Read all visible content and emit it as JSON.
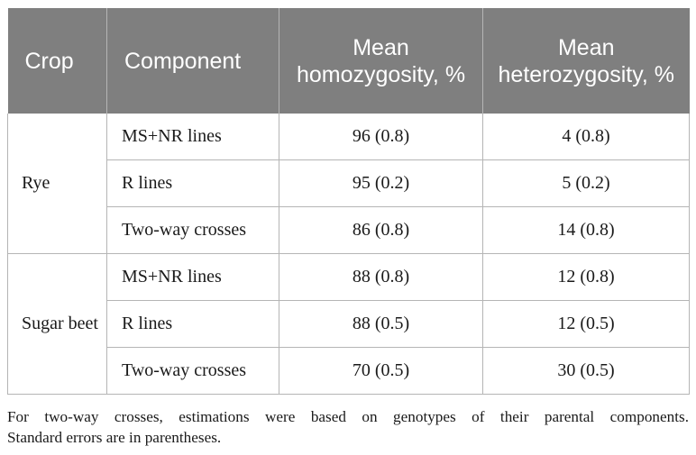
{
  "table": {
    "headers": [
      "Crop",
      "Component",
      "Mean homozygosity, %",
      "Mean heterozygosity, %"
    ],
    "groups": [
      {
        "crop": "Rye",
        "rows": [
          {
            "component": "MS+NR lines",
            "homozygosity": "96 (0.8)",
            "heterozygosity": "4 (0.8)"
          },
          {
            "component": "R lines",
            "homozygosity": "95 (0.2)",
            "heterozygosity": "5 (0.2)"
          },
          {
            "component": "Two-way crosses",
            "homozygosity": "86 (0.8)",
            "heterozygosity": "14 (0.8)"
          }
        ]
      },
      {
        "crop": "Sugar beet",
        "rows": [
          {
            "component": "MS+NR lines",
            "homozygosity": "88 (0.8)",
            "heterozygosity": "12 (0.8)"
          },
          {
            "component": "R lines",
            "homozygosity": "88 (0.5)",
            "heterozygosity": "12 (0.5)"
          },
          {
            "component": "Two-way crosses",
            "homozygosity": "70 (0.5)",
            "heterozygosity": "30 (0.5)"
          }
        ]
      }
    ]
  },
  "footnote": {
    "line1": "For two-way crosses, estimations were based on genotypes of their parental components.",
    "line2": "Standard errors are in parentheses."
  }
}
